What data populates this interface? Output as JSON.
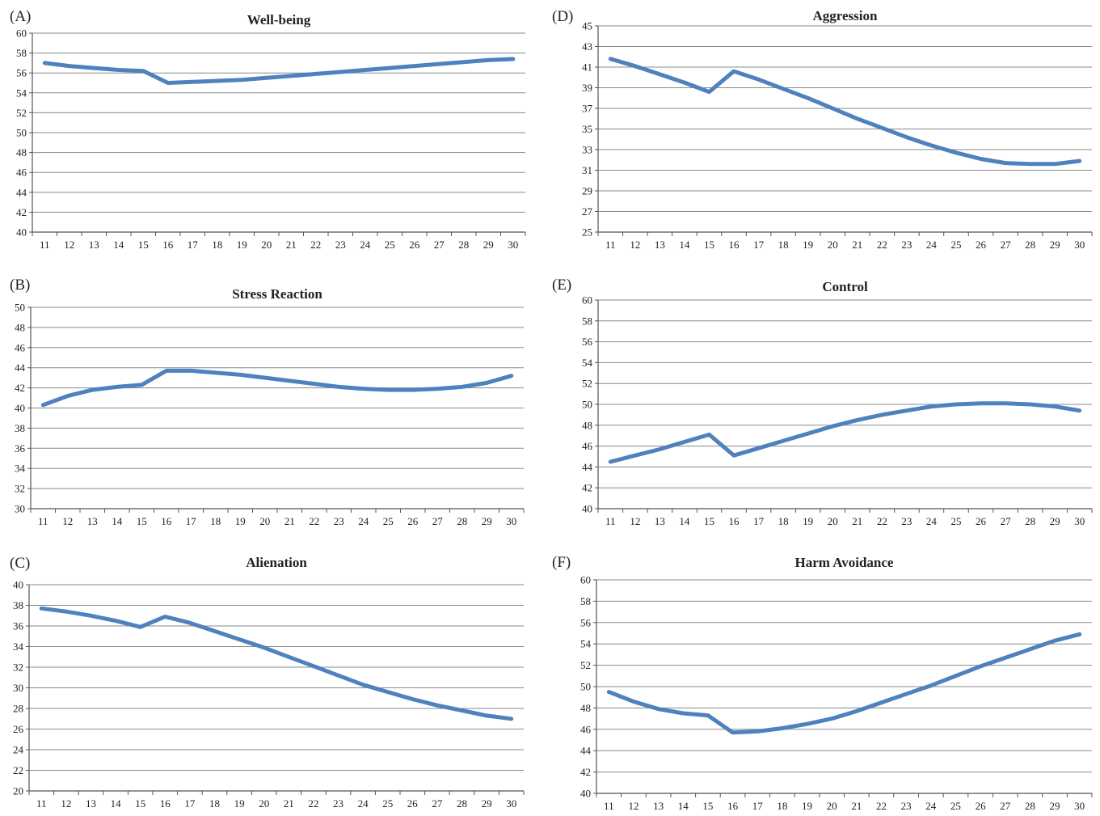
{
  "colors": {
    "series": "#4f81bd",
    "grid": "#8a8a8a",
    "text": "#222222"
  },
  "chart_data": [
    {
      "panel": "(A)",
      "type": "line",
      "title": "Well-being",
      "x": [
        11,
        12,
        13,
        14,
        15,
        16,
        17,
        18,
        19,
        20,
        21,
        22,
        23,
        24,
        25,
        26,
        27,
        28,
        29,
        30
      ],
      "series": [
        {
          "values": [
            57.0,
            56.7,
            56.5,
            56.3,
            56.2,
            55.0,
            55.1,
            55.2,
            55.3,
            55.5,
            55.7,
            55.9,
            56.1,
            56.3,
            56.5,
            56.7,
            56.9,
            57.1,
            57.3,
            57.4
          ]
        }
      ],
      "ylim": [
        40,
        60
      ],
      "ystep": 2,
      "grid": true,
      "xlabel": "",
      "ylabel": ""
    },
    {
      "panel": "(B)",
      "type": "line",
      "title": "Stress Reaction",
      "x": [
        11,
        12,
        13,
        14,
        15,
        16,
        17,
        18,
        19,
        20,
        21,
        22,
        23,
        24,
        25,
        26,
        27,
        28,
        29,
        30
      ],
      "series": [
        {
          "values": [
            40.3,
            41.2,
            41.8,
            42.1,
            42.3,
            43.7,
            43.7,
            43.5,
            43.3,
            43.0,
            42.7,
            42.4,
            42.1,
            41.9,
            41.8,
            41.8,
            41.9,
            42.1,
            42.5,
            43.2
          ]
        }
      ],
      "ylim": [
        30,
        50
      ],
      "ystep": 2,
      "grid": true,
      "xlabel": "",
      "ylabel": ""
    },
    {
      "panel": "(C)",
      "type": "line",
      "title": "Alienation",
      "x": [
        11,
        12,
        13,
        14,
        15,
        16,
        17,
        18,
        19,
        20,
        21,
        22,
        23,
        24,
        25,
        26,
        27,
        28,
        29,
        30
      ],
      "series": [
        {
          "values": [
            37.7,
            37.4,
            37.0,
            36.5,
            35.9,
            36.9,
            36.3,
            35.5,
            34.7,
            33.9,
            33.0,
            32.1,
            31.2,
            30.3,
            29.6,
            28.9,
            28.3,
            27.8,
            27.3,
            27.0
          ]
        }
      ],
      "ylim": [
        20,
        40
      ],
      "ystep": 2,
      "grid": true,
      "xlabel": "",
      "ylabel": ""
    },
    {
      "panel": "(D)",
      "type": "line",
      "title": "Aggression",
      "x": [
        11,
        12,
        13,
        14,
        15,
        16,
        17,
        18,
        19,
        20,
        21,
        22,
        23,
        24,
        25,
        26,
        27,
        28,
        29,
        30
      ],
      "series": [
        {
          "values": [
            41.8,
            41.1,
            40.3,
            39.5,
            38.6,
            40.6,
            39.8,
            38.9,
            38.0,
            37.0,
            36.0,
            35.1,
            34.2,
            33.4,
            32.7,
            32.1,
            31.7,
            31.6,
            31.6,
            31.9
          ]
        }
      ],
      "ylim": [
        25,
        45
      ],
      "ystep": 2,
      "ystart": 25,
      "grid": true,
      "xlabel": "",
      "ylabel": ""
    },
    {
      "panel": "(E)",
      "type": "line",
      "title": "Control",
      "x": [
        11,
        12,
        13,
        14,
        15,
        16,
        17,
        18,
        19,
        20,
        21,
        22,
        23,
        24,
        25,
        26,
        27,
        28,
        29,
        30
      ],
      "series": [
        {
          "values": [
            44.5,
            45.1,
            45.7,
            46.4,
            47.1,
            45.1,
            45.8,
            46.5,
            47.2,
            47.9,
            48.5,
            49.0,
            49.4,
            49.8,
            50.0,
            50.1,
            50.1,
            50.0,
            49.8,
            49.4
          ]
        }
      ],
      "ylim": [
        40,
        60
      ],
      "ystep": 2,
      "grid": true,
      "xlabel": "",
      "ylabel": ""
    },
    {
      "panel": "(F)",
      "type": "line",
      "title": "Harm Avoidance",
      "x": [
        11,
        12,
        13,
        14,
        15,
        16,
        17,
        18,
        19,
        20,
        21,
        22,
        23,
        24,
        25,
        26,
        27,
        28,
        29,
        30
      ],
      "series": [
        {
          "values": [
            49.5,
            48.6,
            47.9,
            47.5,
            47.3,
            45.7,
            45.8,
            46.1,
            46.5,
            47.0,
            47.7,
            48.5,
            49.3,
            50.1,
            51.0,
            51.9,
            52.7,
            53.5,
            54.3,
            54.9
          ]
        }
      ],
      "ylim": [
        40,
        60
      ],
      "ystep": 2,
      "grid": true,
      "xlabel": "",
      "ylabel": ""
    }
  ]
}
